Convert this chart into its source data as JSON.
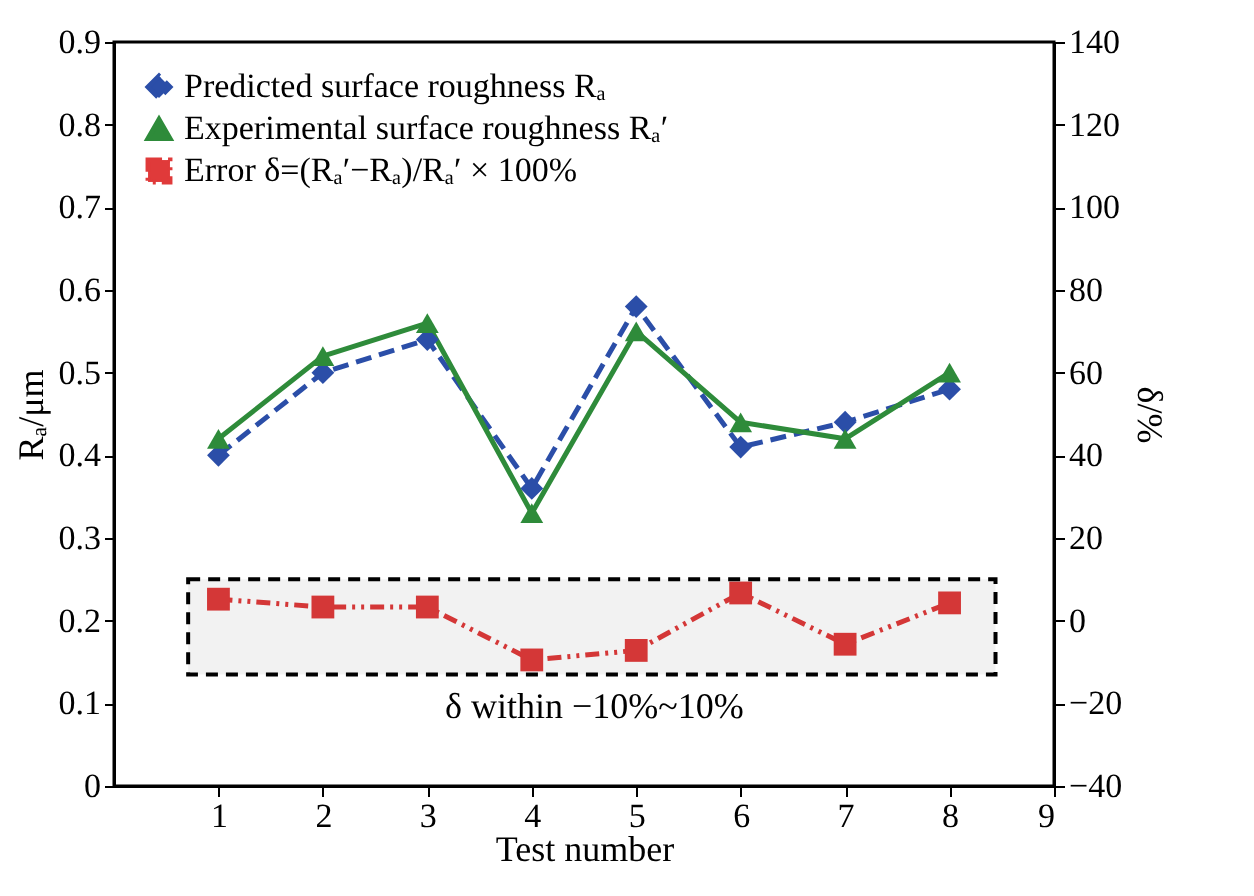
{
  "chart_data": {
    "type": "line",
    "xlabel": "Test number",
    "ylabel": "Rₐ/μm",
    "y2label": "δ/%",
    "x": [
      1,
      2,
      3,
      4,
      5,
      6,
      7,
      8
    ],
    "series": [
      {
        "name": "Predicted surface roughness Rₐ",
        "color": "#2b4ea8",
        "marker": "diamond",
        "line_style": "dashed",
        "values": [
          0.4,
          0.5,
          0.54,
          0.36,
          0.58,
          0.41,
          0.44,
          0.48
        ]
      },
      {
        "name": "Experimental surface roughness Rₐ′",
        "color": "#2e8b3a",
        "marker": "triangle",
        "line_style": "solid",
        "values": [
          0.42,
          0.52,
          0.56,
          0.33,
          0.55,
          0.44,
          0.42,
          0.5
        ]
      },
      {
        "name": "Error δ=(Rₐ′−Rₐ)/Rₐ′ × 100%",
        "color": "#e03a3a",
        "marker": "square",
        "line_style": "dotted",
        "axis": "y2",
        "values": [
          5.2,
          3.3,
          3.3,
          -9.5,
          -7.2,
          6.7,
          -5.7,
          4.3
        ]
      }
    ],
    "xlim": [
      0,
      9
    ],
    "xticks": [
      1,
      2,
      3,
      4,
      5,
      6,
      7,
      8,
      9
    ],
    "ylim": [
      0,
      0.9
    ],
    "yticks": [
      0,
      0.1,
      0.2,
      0.3,
      0.4,
      0.5,
      0.6,
      0.7,
      0.8,
      0.9
    ],
    "y2lim": [
      -40,
      140
    ],
    "y2ticks": [
      -40,
      -20,
      0,
      20,
      40,
      60,
      80,
      100,
      120,
      140
    ],
    "bands": [
      {
        "axis": "y2",
        "from": -13,
        "to": 10,
        "label": "δ within −10%~10%",
        "color": "#000000"
      }
    ],
    "grid": false,
    "legend": "top left"
  }
}
